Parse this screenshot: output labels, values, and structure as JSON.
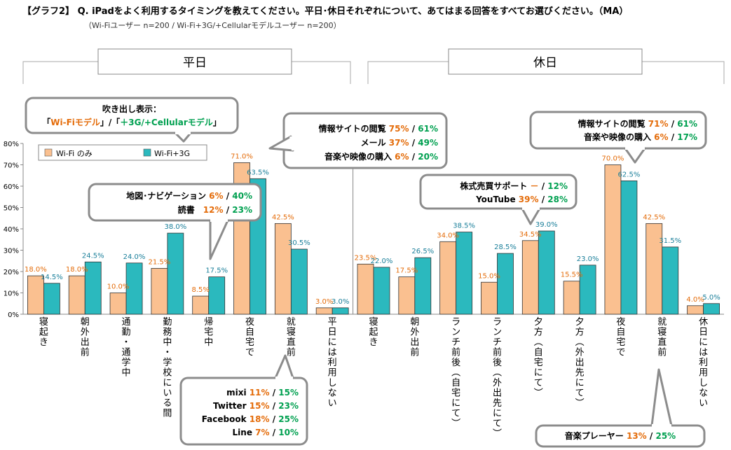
{
  "header": {
    "title": "【グラフ2】 Q. iPadをよく利用するタイミングを教えてください。平日･休日それぞれについて、あてはまる回答をすべてお選びください。（MA）",
    "subtitle": "（Wi-Fiユーザー n=200 / Wi-Fi+3G/+Cellularモデルユーザー n=200）"
  },
  "colors": {
    "wifi": "#FAC090",
    "cell": "#2BB9BE",
    "orange_text": "#E46C0A",
    "green_text": "#00A050"
  },
  "chart_data": {
    "type": "bar",
    "ylim": [
      0,
      80
    ],
    "yticks": [
      "0%",
      "10%",
      "20%",
      "30%",
      "40%",
      "50%",
      "60%",
      "70%",
      "80%"
    ],
    "legend": [
      "Wi-Fi のみ",
      "Wi-Fi+3G"
    ],
    "legend_position": "top-left",
    "groups": [
      {
        "label": "平日",
        "categories": [
          "寝起き",
          "朝外出前",
          "通勤・通学中",
          "勤務中・学校にいる間",
          "帰宅中",
          "夜自宅で",
          "就寝直前",
          "平日には利用しない"
        ]
      },
      {
        "label": "休日",
        "categories": [
          "寝起き",
          "朝外出前",
          "ランチ前後（自宅にて）",
          "ランチ前後（外出先にて）",
          "夕方（自宅にて）",
          "夕方（外出先にて）",
          "夜自宅で",
          "就寝直前",
          "休日には利用しない"
        ]
      }
    ],
    "series": [
      {
        "name": "Wi-Fi のみ",
        "values": [
          18.0,
          18.0,
          10.0,
          21.5,
          8.5,
          71.0,
          42.5,
          3.0,
          23.5,
          17.5,
          34.0,
          15.0,
          34.5,
          15.5,
          70.0,
          42.5,
          4.0
        ],
        "labels": [
          "18.0%",
          "18.0%",
          "10.0%",
          "21.5%",
          "8.5%",
          "71.0%",
          "42.5%",
          "3.0%",
          "23.5%",
          "17.5%",
          "34.0%",
          "15.0%",
          "34.5%",
          "15.5%",
          "70.0%",
          "42.5%",
          "4.0%"
        ]
      },
      {
        "name": "Wi-Fi+3G",
        "values": [
          14.5,
          24.5,
          24.0,
          38.0,
          17.5,
          63.5,
          30.5,
          3.0,
          22.0,
          26.5,
          38.5,
          28.5,
          39.0,
          23.0,
          62.5,
          31.5,
          5.0
        ],
        "labels": [
          "14.5%",
          "24.5%",
          "24.0%",
          "38.0%",
          "17.5%",
          "63.5%",
          "30.5%",
          "3.0%",
          "22.0%",
          "26.5%",
          "38.5%",
          "28.5%",
          "39.0%",
          "23.0%",
          "62.5%",
          "31.5%",
          "5.0%"
        ]
      }
    ],
    "callouts": [
      {
        "id": "legend_note",
        "lines": [
          [
            {
              "t": "吹き出し表示：",
              "c": "k"
            }
          ],
          [
            {
              "t": "「",
              "c": "k"
            },
            {
              "t": "Wi-Fiモデル",
              "c": "o"
            },
            {
              "t": "」/「",
              "c": "k"
            },
            {
              "t": "＋3G/+Cellularモデル",
              "c": "g"
            },
            {
              "t": "」",
              "c": "k"
            }
          ]
        ]
      },
      {
        "id": "weekday_night",
        "lines": [
          [
            {
              "t": "情報サイトの閲覧 ",
              "c": "k"
            },
            {
              "t": "75%",
              "c": "o"
            },
            {
              "t": " / ",
              "c": "k"
            },
            {
              "t": "61%",
              "c": "g"
            }
          ],
          [
            {
              "t": "メール ",
              "c": "k"
            },
            {
              "t": "37%",
              "c": "o"
            },
            {
              "t": " / ",
              "c": "k"
            },
            {
              "t": "49%",
              "c": "g"
            }
          ],
          [
            {
              "t": "音楽や映像の購入 ",
              "c": "k"
            },
            {
              "t": "6%",
              "c": "o"
            },
            {
              "t": " / ",
              "c": "k"
            },
            {
              "t": "20%",
              "c": "g"
            }
          ]
        ]
      },
      {
        "id": "weekday_commute",
        "lines": [
          [
            {
              "t": "地図･ナビゲーション ",
              "c": "k"
            },
            {
              "t": "6%",
              "c": "o"
            },
            {
              "t": " / ",
              "c": "k"
            },
            {
              "t": "40%",
              "c": "g"
            }
          ],
          [
            {
              "t": "読書　",
              "c": "k"
            },
            {
              "t": "12%",
              "c": "o"
            },
            {
              "t": " / ",
              "c": "k"
            },
            {
              "t": "23%",
              "c": "g"
            }
          ]
        ]
      },
      {
        "id": "weekday_bedtime",
        "lines": [
          [
            {
              "t": "mixi ",
              "c": "k"
            },
            {
              "t": "11%",
              "c": "o"
            },
            {
              "t": " / ",
              "c": "k"
            },
            {
              "t": "15%",
              "c": "g"
            }
          ],
          [
            {
              "t": "Twitter ",
              "c": "k"
            },
            {
              "t": "15%",
              "c": "o"
            },
            {
              "t": " / ",
              "c": "k"
            },
            {
              "t": "23%",
              "c": "g"
            }
          ],
          [
            {
              "t": "Facebook ",
              "c": "k"
            },
            {
              "t": "18%",
              "c": "o"
            },
            {
              "t": " / ",
              "c": "k"
            },
            {
              "t": "25%",
              "c": "g"
            }
          ],
          [
            {
              "t": "Line ",
              "c": "k"
            },
            {
              "t": "7%",
              "c": "o"
            },
            {
              "t": " / ",
              "c": "k"
            },
            {
              "t": "10%",
              "c": "g"
            }
          ]
        ]
      },
      {
        "id": "holiday_evening",
        "lines": [
          [
            {
              "t": "株式売買サポート ",
              "c": "k"
            },
            {
              "t": "－",
              "c": "o"
            },
            {
              "t": " / ",
              "c": "k"
            },
            {
              "t": "12%",
              "c": "g"
            }
          ],
          [
            {
              "t": "YouTube ",
              "c": "k"
            },
            {
              "t": "39%",
              "c": "o"
            },
            {
              "t": " / ",
              "c": "k"
            },
            {
              "t": "28%",
              "c": "g"
            }
          ]
        ]
      },
      {
        "id": "holiday_night",
        "lines": [
          [
            {
              "t": "情報サイトの閲覧 ",
              "c": "k"
            },
            {
              "t": "71%",
              "c": "o"
            },
            {
              "t": " / ",
              "c": "k"
            },
            {
              "t": "61%",
              "c": "g"
            }
          ],
          [
            {
              "t": "音楽や映像の購入 ",
              "c": "k"
            },
            {
              "t": "6%",
              "c": "o"
            },
            {
              "t": " / ",
              "c": "k"
            },
            {
              "t": "17%",
              "c": "g"
            }
          ]
        ]
      },
      {
        "id": "holiday_bedtime",
        "lines": [
          [
            {
              "t": "音楽プレーヤー ",
              "c": "k"
            },
            {
              "t": "13%",
              "c": "o"
            },
            {
              "t": " / ",
              "c": "k"
            },
            {
              "t": "25%",
              "c": "g"
            }
          ]
        ]
      }
    ]
  }
}
